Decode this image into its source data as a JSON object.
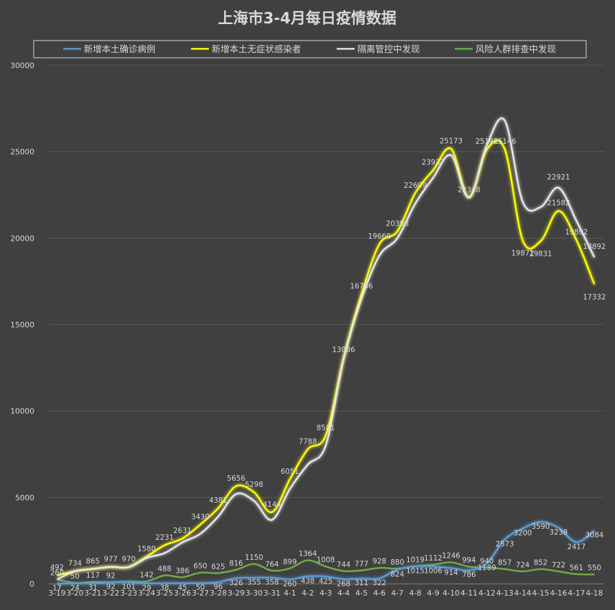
{
  "chart_data": {
    "type": "line",
    "title": "上海市3-4月每日疫情数据",
    "xlabel": "",
    "ylabel": "",
    "ylim": [
      0,
      30000
    ],
    "yticks": [
      0,
      5000,
      10000,
      15000,
      20000,
      25000,
      30000
    ],
    "grid": "horizontal",
    "legend_position": "top",
    "categories": [
      "3-19",
      "3-20",
      "3-21",
      "3-22",
      "3-23",
      "3-24",
      "3-25",
      "3-26",
      "3-27",
      "3-28",
      "3-29",
      "3-30",
      "3-31",
      "4-1",
      "4-2",
      "4-3",
      "4-4",
      "4-5",
      "4-6",
      "4-7",
      "4-8",
      "4-9",
      "4-10",
      "4-11",
      "4-12",
      "4-13",
      "4-14",
      "4-15",
      "4-16",
      "4-17",
      "4-18"
    ],
    "series": [
      {
        "name": "新增本土确诊病例",
        "color": "#5b9bd5",
        "values": [
          17,
          24,
          31,
          92,
          101,
          29,
          38,
          45,
          50,
          96,
          326,
          355,
          358,
          260,
          438,
          425,
          268,
          311,
          322,
          824,
          1015,
          1006,
          914,
          786,
          1189,
          2573,
          3200,
          3590,
          3238,
          2417,
          3084
        ]
      },
      {
        "name": "新增本土无症状感染者",
        "color": "#ffff00",
        "values": [
          492,
          734,
          865,
          977,
          970,
          1580,
          2231,
          2631,
          3430,
          4381,
          5656,
          5298,
          4144,
          6051,
          7788,
          8581,
          13086,
          16766,
          19660,
          20398,
          22609,
          23937,
          25173,
          22348,
          25141,
          25146,
          19872,
          19831,
          21582,
          19892,
          17332
        ]
      },
      {
        "name": "隔离管控中发现",
        "color": "#e7e6e6",
        "values": [
          260,
          734,
          865,
          977,
          970,
          1500,
          1780,
          2400,
          2900,
          3900,
          5200,
          4800,
          3700,
          5500,
          6900,
          8000,
          13000,
          16500,
          19000,
          20000,
          22000,
          23500,
          24800,
          22348,
          25400,
          26800,
          22100,
          21800,
          22921,
          21000,
          18892
        ]
      },
      {
        "name": "风险人群排查中发现",
        "color": "#70ad47",
        "values": [
          260,
          50,
          117,
          92,
          142,
          142,
          488,
          386,
          650,
          625,
          816,
          1150,
          764,
          899,
          1364,
          1008,
          744,
          777,
          928,
          880,
          1019,
          1112,
          1246,
          994,
          940,
          857,
          724,
          852,
          722,
          561,
          550
        ]
      }
    ],
    "annotations": [
      {
        "series": 0,
        "index": 0,
        "text": "17",
        "color": "#d9d9d9"
      },
      {
        "series": 0,
        "index": 1,
        "text": "24",
        "color": "#d9d9d9"
      },
      {
        "series": 0,
        "index": 2,
        "text": "31",
        "color": "#d9d9d9"
      },
      {
        "series": 0,
        "index": 3,
        "text": "92",
        "color": "#d9d9d9"
      },
      {
        "series": 0,
        "index": 4,
        "text": "101",
        "color": "#d9d9d9"
      },
      {
        "series": 0,
        "index": 5,
        "text": "29",
        "color": "#d9d9d9"
      },
      {
        "series": 0,
        "index": 6,
        "text": "38",
        "color": "#d9d9d9"
      },
      {
        "series": 0,
        "index": 7,
        "text": "45",
        "color": "#d9d9d9"
      },
      {
        "series": 0,
        "index": 8,
        "text": "50",
        "color": "#d9d9d9"
      },
      {
        "series": 0,
        "index": 9,
        "text": "96",
        "color": "#d9d9d9"
      },
      {
        "series": 0,
        "index": 10,
        "text": "326",
        "color": "#d9d9d9"
      },
      {
        "series": 0,
        "index": 11,
        "text": "355",
        "color": "#d9d9d9"
      },
      {
        "series": 0,
        "index": 12,
        "text": "358",
        "color": "#d9d9d9"
      },
      {
        "series": 0,
        "index": 13,
        "text": "260",
        "color": "#d9d9d9"
      },
      {
        "series": 0,
        "index": 14,
        "text": "438",
        "color": "#d9d9d9"
      },
      {
        "series": 0,
        "index": 15,
        "text": "425",
        "color": "#d9d9d9"
      },
      {
        "series": 0,
        "index": 16,
        "text": "268",
        "color": "#d9d9d9"
      },
      {
        "series": 0,
        "index": 17,
        "text": "311",
        "color": "#d9d9d9"
      },
      {
        "series": 0,
        "index": 18,
        "text": "322",
        "color": "#d9d9d9"
      },
      {
        "series": 0,
        "index": 19,
        "text": "824",
        "color": "#d9d9d9"
      },
      {
        "series": 0,
        "index": 20,
        "text": "1015",
        "color": "#d9d9d9"
      },
      {
        "series": 0,
        "index": 21,
        "text": "1006",
        "color": "#d9d9d9"
      },
      {
        "series": 0,
        "index": 22,
        "text": "914",
        "color": "#d9d9d9"
      },
      {
        "series": 0,
        "index": 23,
        "text": "786",
        "color": "#d9d9d9"
      },
      {
        "series": 0,
        "index": 24,
        "text": "1189",
        "color": "#d9d9d9"
      },
      {
        "series": 0,
        "index": 25,
        "text": "2573",
        "color": "#d9d9d9"
      },
      {
        "series": 0,
        "index": 26,
        "text": "3200",
        "color": "#d9d9d9"
      },
      {
        "series": 0,
        "index": 27,
        "text": "3590",
        "color": "#d9d9d9"
      },
      {
        "series": 0,
        "index": 28,
        "text": "3238",
        "color": "#d9d9d9"
      },
      {
        "series": 0,
        "index": 29,
        "text": "2417",
        "color": "#d9d9d9"
      },
      {
        "series": 0,
        "index": 30,
        "text": "3084",
        "color": "#d9d9d9"
      },
      {
        "series": 1,
        "index": 0,
        "text": "492",
        "color": "#d9d9d9"
      },
      {
        "series": 1,
        "index": 1,
        "text": "734",
        "color": "#d9d9d9"
      },
      {
        "series": 1,
        "index": 2,
        "text": "865",
        "color": "#d9d9d9"
      },
      {
        "series": 1,
        "index": 3,
        "text": "977",
        "color": "#d9d9d9"
      },
      {
        "series": 1,
        "index": 4,
        "text": "970",
        "color": "#d9d9d9"
      },
      {
        "series": 1,
        "index": 5,
        "text": "1580",
        "color": "#d9d9d9"
      },
      {
        "series": 1,
        "index": 6,
        "text": "2231",
        "color": "#d9d9d9"
      },
      {
        "series": 1,
        "index": 7,
        "text": "2631",
        "color": "#d9d9d9"
      },
      {
        "series": 1,
        "index": 8,
        "text": "3430",
        "color": "#d9d9d9"
      },
      {
        "series": 1,
        "index": 9,
        "text": "4381",
        "color": "#d9d9d9"
      },
      {
        "series": 1,
        "index": 10,
        "text": "5656",
        "color": "#d9d9d9"
      },
      {
        "series": 1,
        "index": 11,
        "text": "5298",
        "color": "#d9d9d9"
      },
      {
        "series": 1,
        "index": 12,
        "text": "4144",
        "color": "#d9d9d9"
      },
      {
        "series": 1,
        "index": 13,
        "text": "6051",
        "color": "#d9d9d9"
      },
      {
        "series": 1,
        "index": 14,
        "text": "7788",
        "color": "#d9d9d9"
      },
      {
        "series": 1,
        "index": 15,
        "text": "8581",
        "color": "#d9d9d9"
      },
      {
        "series": 1,
        "index": 16,
        "text": "13086",
        "color": "#d9d9d9"
      },
      {
        "series": 1,
        "index": 17,
        "text": "16766",
        "color": "#d9d9d9"
      },
      {
        "series": 1,
        "index": 18,
        "text": "19660",
        "color": "#d9d9d9"
      },
      {
        "series": 1,
        "index": 19,
        "text": "20398",
        "color": "#d9d9d9"
      },
      {
        "series": 1,
        "index": 20,
        "text": "22609",
        "color": "#d9d9d9"
      },
      {
        "series": 1,
        "index": 21,
        "text": "23937",
        "color": "#d9d9d9"
      },
      {
        "series": 1,
        "index": 22,
        "text": "25173",
        "color": "#d9d9d9"
      },
      {
        "series": 1,
        "index": 23,
        "text": "22348",
        "color": "#d9d9d9"
      },
      {
        "series": 1,
        "index": 24,
        "text": "25141",
        "color": "#d9d9d9"
      },
      {
        "series": 1,
        "index": 25,
        "text": "25146",
        "color": "#d9d9d9"
      },
      {
        "series": 1,
        "index": 26,
        "text": "19872",
        "color": "#d9d9d9"
      },
      {
        "series": 1,
        "index": 27,
        "text": "19831",
        "color": "#d9d9d9"
      },
      {
        "series": 1,
        "index": 28,
        "text": "21582",
        "color": "#d9d9d9"
      },
      {
        "series": 1,
        "index": 29,
        "text": "19892",
        "color": "#d9d9d9"
      },
      {
        "series": 1,
        "index": 30,
        "text": "17332",
        "color": "#d9d9d9"
      },
      {
        "series": 2,
        "index": 28,
        "text": "22921",
        "color": "#d9d9d9"
      },
      {
        "series": 2,
        "index": 30,
        "text": "18892",
        "color": "#d9d9d9"
      },
      {
        "series": 3,
        "index": 0,
        "text": "260",
        "color": "#d9d9d9"
      },
      {
        "series": 3,
        "index": 1,
        "text": "50",
        "color": "#d9d9d9"
      },
      {
        "series": 3,
        "index": 2,
        "text": "117",
        "color": "#d9d9d9"
      },
      {
        "series": 3,
        "index": 3,
        "text": "92",
        "color": "#d9d9d9"
      },
      {
        "series": 3,
        "index": 5,
        "text": "142",
        "color": "#d9d9d9"
      },
      {
        "series": 3,
        "index": 6,
        "text": "488",
        "color": "#d9d9d9"
      },
      {
        "series": 3,
        "index": 7,
        "text": "386",
        "color": "#d9d9d9"
      },
      {
        "series": 3,
        "index": 8,
        "text": "650",
        "color": "#d9d9d9"
      },
      {
        "series": 3,
        "index": 9,
        "text": "625",
        "color": "#d9d9d9"
      },
      {
        "series": 3,
        "index": 10,
        "text": "816",
        "color": "#d9d9d9"
      },
      {
        "series": 3,
        "index": 11,
        "text": "1150",
        "color": "#d9d9d9"
      },
      {
        "series": 3,
        "index": 12,
        "text": "764",
        "color": "#d9d9d9"
      },
      {
        "series": 3,
        "index": 13,
        "text": "899",
        "color": "#d9d9d9"
      },
      {
        "series": 3,
        "index": 14,
        "text": "1364",
        "color": "#d9d9d9"
      },
      {
        "series": 3,
        "index": 15,
        "text": "1008",
        "color": "#d9d9d9"
      },
      {
        "series": 3,
        "index": 16,
        "text": "744",
        "color": "#d9d9d9"
      },
      {
        "series": 3,
        "index": 17,
        "text": "777",
        "color": "#d9d9d9"
      },
      {
        "series": 3,
        "index": 18,
        "text": "928",
        "color": "#d9d9d9"
      },
      {
        "series": 3,
        "index": 19,
        "text": "880",
        "color": "#d9d9d9"
      },
      {
        "series": 3,
        "index": 20,
        "text": "1019",
        "color": "#d9d9d9"
      },
      {
        "series": 3,
        "index": 21,
        "text": "1112",
        "color": "#d9d9d9"
      },
      {
        "series": 3,
        "index": 22,
        "text": "1246",
        "color": "#d9d9d9"
      },
      {
        "series": 3,
        "index": 23,
        "text": "994",
        "color": "#d9d9d9"
      },
      {
        "series": 3,
        "index": 24,
        "text": "940",
        "color": "#d9d9d9"
      },
      {
        "series": 3,
        "index": 25,
        "text": "857",
        "color": "#d9d9d9"
      },
      {
        "series": 3,
        "index": 26,
        "text": "724",
        "color": "#d9d9d9"
      },
      {
        "series": 3,
        "index": 27,
        "text": "852",
        "color": "#d9d9d9"
      },
      {
        "series": 3,
        "index": 28,
        "text": "722",
        "color": "#d9d9d9"
      },
      {
        "series": 3,
        "index": 29,
        "text": "561",
        "color": "#d9d9d9"
      },
      {
        "series": 3,
        "index": 30,
        "text": "550",
        "color": "#d9d9d9"
      }
    ]
  }
}
